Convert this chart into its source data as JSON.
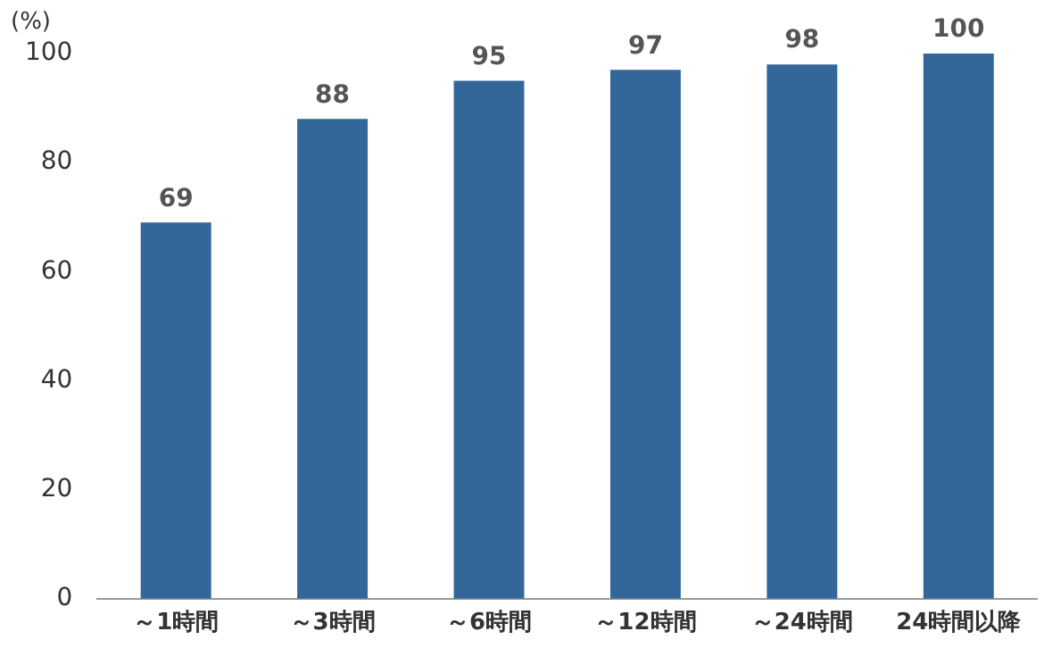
{
  "chart_data": {
    "type": "bar",
    "ylabel": "(%)",
    "categories": [
      "～1時間",
      "～3時間",
      "～6時間",
      "～12時間",
      "～24時間",
      "24時間以降"
    ],
    "values": [
      69,
      88,
      95,
      97,
      98,
      100
    ],
    "color": "#336699",
    "ylim": [
      0,
      100
    ],
    "yticks": [
      0,
      20,
      40,
      60,
      80,
      100
    ],
    "grid": false,
    "legend": false,
    "data_labels": true
  }
}
